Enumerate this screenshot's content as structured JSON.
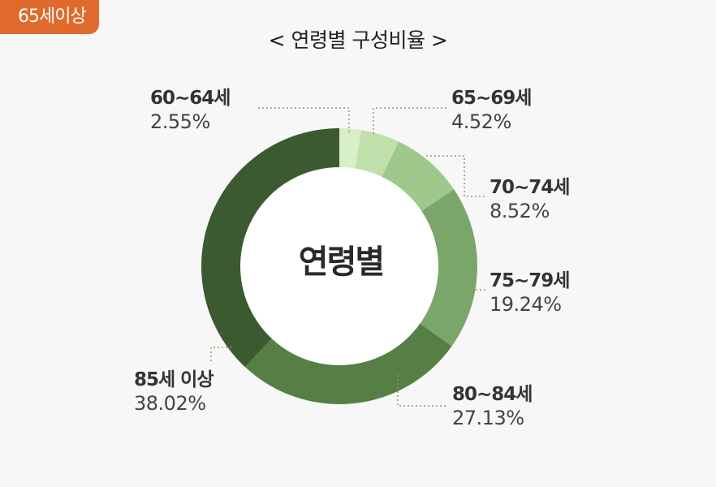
{
  "badge": "65세이상",
  "chart_data": {
    "type": "pie",
    "title": "< 연령별 구성비율 >",
    "center_label": "연령별",
    "categories": [
      "60~64세",
      "65~69세",
      "70~74세",
      "75~79세",
      "80~84세",
      "85세 이상"
    ],
    "values": [
      2.55,
      4.52,
      8.52,
      19.24,
      27.13,
      38.02
    ],
    "value_labels": [
      "2.55%",
      "4.52%",
      "8.52%",
      "19.24%",
      "27.13%",
      "38.02%"
    ],
    "colors": [
      "#d8efc8",
      "#bfe0aa",
      "#9fc98a",
      "#7ba66a",
      "#557f45",
      "#3b5a30"
    ]
  }
}
